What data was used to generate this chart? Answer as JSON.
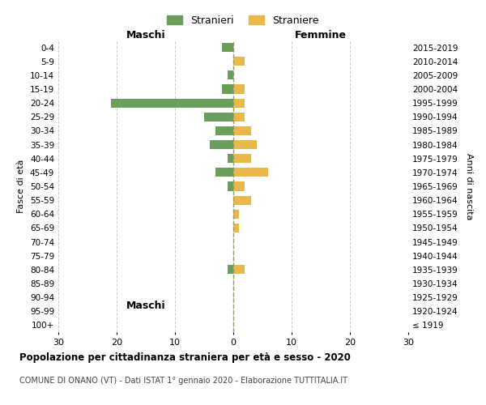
{
  "age_groups": [
    "100+",
    "95-99",
    "90-94",
    "85-89",
    "80-84",
    "75-79",
    "70-74",
    "65-69",
    "60-64",
    "55-59",
    "50-54",
    "45-49",
    "40-44",
    "35-39",
    "30-34",
    "25-29",
    "20-24",
    "15-19",
    "10-14",
    "5-9",
    "0-4"
  ],
  "birth_years": [
    "≤ 1919",
    "1920-1924",
    "1925-1929",
    "1930-1934",
    "1935-1939",
    "1940-1944",
    "1945-1949",
    "1950-1954",
    "1955-1959",
    "1960-1964",
    "1965-1969",
    "1970-1974",
    "1975-1979",
    "1980-1984",
    "1985-1989",
    "1990-1994",
    "1995-1999",
    "2000-2004",
    "2005-2009",
    "2010-2014",
    "2015-2019"
  ],
  "maschi": [
    0,
    0,
    0,
    0,
    1,
    0,
    0,
    0,
    0,
    0,
    1,
    3,
    1,
    4,
    3,
    5,
    21,
    2,
    1,
    0,
    2
  ],
  "femmine": [
    0,
    0,
    0,
    0,
    2,
    0,
    0,
    1,
    1,
    3,
    2,
    6,
    3,
    4,
    3,
    2,
    2,
    2,
    0,
    2,
    0
  ],
  "color_maschi": "#6a9e5a",
  "color_femmine": "#e8b84b",
  "title": "Popolazione per cittadinanza straniera per età e sesso - 2020",
  "subtitle": "COMUNE DI ONANO (VT) - Dati ISTAT 1° gennaio 2020 - Elaborazione TUTTITALIA.IT",
  "xlabel_left": "Maschi",
  "xlabel_right": "Femmine",
  "ylabel_left": "Fasce di età",
  "ylabel_right": "Anni di nascita",
  "legend_maschi": "Stranieri",
  "legend_femmine": "Straniere",
  "xlim": 30,
  "background_color": "#ffffff",
  "grid_color": "#cccccc"
}
